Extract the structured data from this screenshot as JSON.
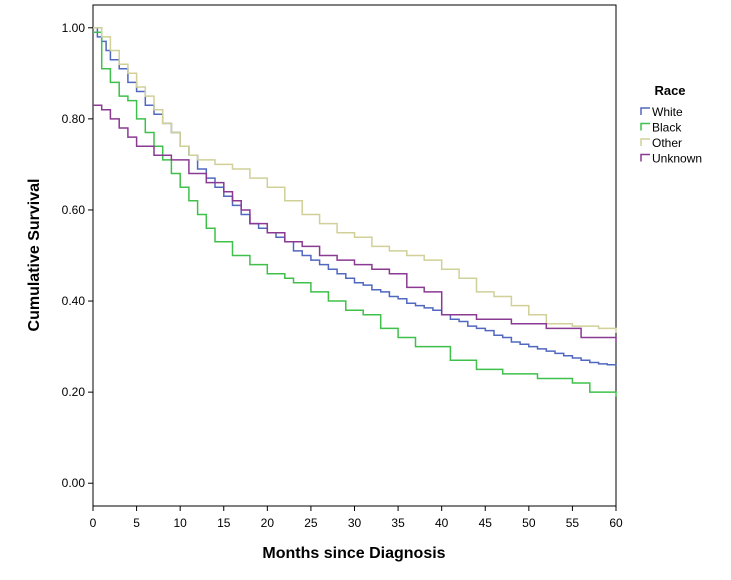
{
  "chart_data": {
    "type": "line",
    "xlabel": "Months since Diagnosis",
    "ylabel": "Cumulative Survival",
    "xlim": [
      0,
      60
    ],
    "ylim": [
      -0.05,
      1.05
    ],
    "xticks": [
      0,
      5,
      10,
      15,
      20,
      25,
      30,
      35,
      40,
      45,
      50,
      55,
      60
    ],
    "xtick_labels": [
      "0",
      "5",
      "10",
      "15",
      "20",
      "25",
      "30",
      "35",
      "40",
      "45",
      "50",
      "55",
      "60"
    ],
    "yticks": [
      0.0,
      0.2,
      0.4,
      0.6,
      0.8,
      1.0
    ],
    "ytick_labels": [
      "0.00",
      "0.20",
      "0.40",
      "0.60",
      "0.80",
      "1.00"
    ],
    "grid": false,
    "legend": {
      "title": "Race",
      "placement": "right"
    },
    "series": [
      {
        "name": "White",
        "color": "#5068c0",
        "x": [
          0,
          0.5,
          1,
          1.5,
          2,
          3,
          4,
          5,
          6,
          7,
          8,
          9,
          10,
          11,
          12,
          13,
          14,
          15,
          16,
          17,
          18,
          19,
          20,
          21,
          22,
          23,
          24,
          25,
          26,
          27,
          28,
          29,
          30,
          31,
          32,
          33,
          34,
          35,
          36,
          37,
          38,
          39,
          40,
          41,
          42,
          43,
          44,
          45,
          46,
          47,
          48,
          49,
          50,
          51,
          52,
          53,
          54,
          55,
          56,
          57,
          58,
          59,
          60
        ],
        "y": [
          1.0,
          0.98,
          0.97,
          0.95,
          0.93,
          0.91,
          0.88,
          0.86,
          0.83,
          0.81,
          0.79,
          0.77,
          0.74,
          0.72,
          0.69,
          0.67,
          0.65,
          0.63,
          0.61,
          0.59,
          0.57,
          0.56,
          0.55,
          0.54,
          0.53,
          0.51,
          0.5,
          0.49,
          0.48,
          0.47,
          0.46,
          0.45,
          0.44,
          0.435,
          0.425,
          0.42,
          0.41,
          0.405,
          0.395,
          0.39,
          0.385,
          0.38,
          0.37,
          0.36,
          0.355,
          0.345,
          0.34,
          0.335,
          0.325,
          0.32,
          0.31,
          0.305,
          0.3,
          0.295,
          0.29,
          0.285,
          0.28,
          0.275,
          0.27,
          0.265,
          0.262,
          0.26,
          0.258
        ]
      },
      {
        "name": "Black",
        "color": "#3fc04a",
        "x": [
          0,
          1,
          2,
          3,
          4,
          5,
          6,
          7,
          8,
          9,
          10,
          11,
          12,
          13,
          14,
          16,
          18,
          20,
          22,
          23,
          25,
          27,
          29,
          31,
          33,
          35,
          37,
          41,
          44,
          47,
          51,
          55,
          57,
          60
        ],
        "y": [
          0.99,
          0.91,
          0.88,
          0.85,
          0.84,
          0.8,
          0.77,
          0.74,
          0.71,
          0.68,
          0.65,
          0.62,
          0.59,
          0.56,
          0.53,
          0.5,
          0.48,
          0.46,
          0.45,
          0.44,
          0.42,
          0.4,
          0.38,
          0.37,
          0.34,
          0.32,
          0.3,
          0.27,
          0.25,
          0.24,
          0.23,
          0.22,
          0.2,
          0.19
        ]
      },
      {
        "name": "Other",
        "color": "#d0d098",
        "x": [
          0,
          1,
          2,
          3,
          4,
          5,
          6,
          7,
          8,
          9,
          10,
          11,
          12,
          14,
          16,
          18,
          20,
          22,
          24,
          26,
          28,
          30,
          32,
          34,
          36,
          38,
          40,
          42,
          44,
          46,
          48,
          50,
          52,
          55,
          58,
          60
        ],
        "y": [
          1.0,
          0.98,
          0.95,
          0.92,
          0.9,
          0.87,
          0.85,
          0.82,
          0.79,
          0.77,
          0.74,
          0.72,
          0.71,
          0.7,
          0.69,
          0.67,
          0.65,
          0.62,
          0.59,
          0.57,
          0.55,
          0.54,
          0.52,
          0.51,
          0.5,
          0.49,
          0.47,
          0.45,
          0.42,
          0.41,
          0.39,
          0.37,
          0.35,
          0.345,
          0.34,
          0.33
        ]
      },
      {
        "name": "Unknown",
        "color": "#8a3a92",
        "x": [
          0,
          1,
          2,
          3,
          4,
          5,
          7,
          9,
          11,
          13,
          15,
          16,
          17,
          18,
          20,
          22,
          24,
          26,
          28,
          30,
          32,
          34,
          36,
          38,
          40,
          42,
          44,
          46,
          48,
          50,
          52,
          54,
          56,
          58,
          60
        ],
        "y": [
          0.83,
          0.82,
          0.8,
          0.78,
          0.76,
          0.74,
          0.72,
          0.71,
          0.68,
          0.66,
          0.64,
          0.62,
          0.6,
          0.57,
          0.55,
          0.53,
          0.52,
          0.5,
          0.49,
          0.48,
          0.47,
          0.46,
          0.43,
          0.42,
          0.37,
          0.37,
          0.36,
          0.36,
          0.35,
          0.35,
          0.34,
          0.34,
          0.32,
          0.32,
          0.31
        ]
      }
    ]
  }
}
